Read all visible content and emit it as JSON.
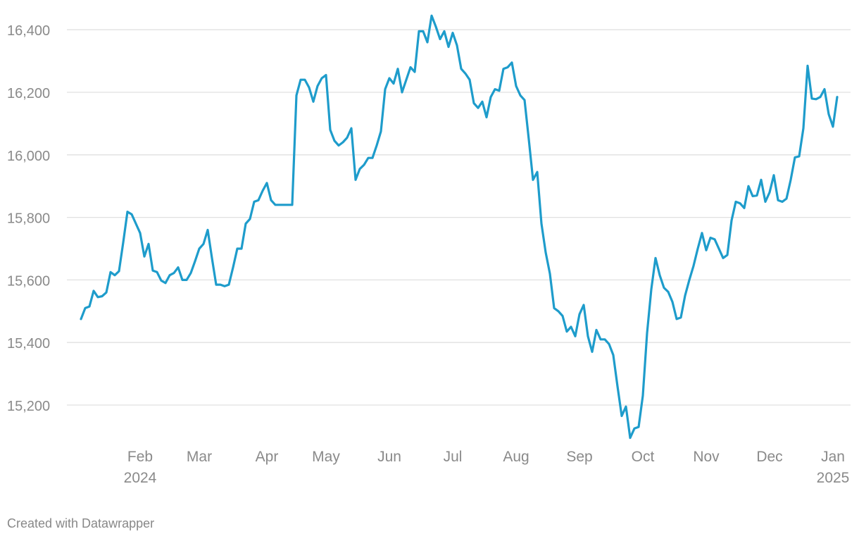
{
  "chart_data": {
    "type": "line",
    "color": "#1e9ccb",
    "grid": true,
    "footer": "Created with Datawrapper",
    "ylim": [
      15050,
      16450
    ],
    "yticks": [
      {
        "value": 15200,
        "label": "15,200"
      },
      {
        "value": 15400,
        "label": "15,400"
      },
      {
        "value": 15600,
        "label": "15,600"
      },
      {
        "value": 15800,
        "label": "15,800"
      },
      {
        "value": 16000,
        "label": "16,000"
      },
      {
        "value": 16200,
        "label": "16,200"
      },
      {
        "value": 16400,
        "label": "16,400"
      }
    ],
    "categories": [
      null,
      null,
      null,
      null,
      null,
      null,
      null,
      null,
      null,
      null,
      null,
      null,
      null,
      null,
      "Feb\n2024",
      null,
      null,
      null,
      null,
      null,
      null,
      null,
      null,
      null,
      null,
      null,
      null,
      null,
      "Mar",
      null,
      null,
      null,
      null,
      null,
      null,
      null,
      null,
      null,
      null,
      null,
      null,
      null,
      null,
      null,
      "Apr",
      null,
      null,
      null,
      null,
      null,
      null,
      null,
      null,
      null,
      null,
      null,
      null,
      null,
      "May",
      null,
      null,
      null,
      null,
      null,
      null,
      null,
      null,
      null,
      null,
      null,
      null,
      null,
      null,
      "Jun",
      null,
      null,
      null,
      null,
      null,
      null,
      null,
      null,
      null,
      null,
      null,
      null,
      null,
      null,
      "Jul",
      null,
      null,
      null,
      null,
      null,
      null,
      null,
      null,
      null,
      null,
      null,
      null,
      null,
      null,
      "Aug",
      null,
      null,
      null,
      null,
      null,
      null,
      null,
      null,
      null,
      null,
      null,
      null,
      null,
      null,
      "Sep",
      null,
      null,
      null,
      null,
      null,
      null,
      null,
      null,
      null,
      null,
      null,
      null,
      null,
      null,
      "Oct",
      null,
      null,
      null,
      null,
      null,
      null,
      null,
      null,
      null,
      null,
      null,
      null,
      null,
      null,
      "Nov",
      null,
      null,
      null,
      null,
      null,
      null,
      null,
      null,
      null,
      null,
      null,
      null,
      null,
      null,
      "Dec",
      null,
      null,
      null,
      null,
      null,
      null,
      null,
      null,
      null,
      null,
      null,
      null,
      null,
      null,
      "Jan\n2025",
      null
    ],
    "values": [
      15475,
      15510,
      15515,
      15565,
      15545,
      15548,
      15560,
      15625,
      15615,
      15628,
      15720,
      15818,
      15810,
      15780,
      15750,
      15675,
      15715,
      15630,
      15625,
      15598,
      15590,
      15615,
      15622,
      15640,
      15600,
      15600,
      15622,
      15660,
      15700,
      15715,
      15760,
      15670,
      15585,
      15585,
      15580,
      15585,
      15640,
      15700,
      15700,
      15780,
      15795,
      15850,
      15855,
      15885,
      15910,
      15855,
      15840,
      15840,
      15840,
      15840,
      15840,
      16190,
      16240,
      16240,
      16215,
      16170,
      16220,
      16245,
      16255,
      16080,
      16045,
      16030,
      16040,
      16055,
      16085,
      15920,
      15955,
      15968,
      15990,
      15990,
      16030,
      16075,
      16210,
      16245,
      16228,
      16275,
      16200,
      16240,
      16280,
      16265,
      16395,
      16395,
      16360,
      16445,
      16410,
      16370,
      16395,
      16345,
      16390,
      16350,
      16275,
      16260,
      16240,
      16165,
      16150,
      16170,
      16120,
      16185,
      16210,
      16205,
      16275,
      16280,
      16295,
      16220,
      16190,
      16175,
      16050,
      15920,
      15945,
      15780,
      15688,
      15620,
      15510,
      15500,
      15485,
      15435,
      15450,
      15420,
      15490,
      15520,
      15420,
      15370,
      15440,
      15410,
      15410,
      15395,
      15360,
      15260,
      15165,
      15195,
      15095,
      15125,
      15130,
      15230,
      15430,
      15570,
      15670,
      15615,
      15575,
      15562,
      15530,
      15475,
      15480,
      15550,
      15600,
      15645,
      15700,
      15750,
      15695,
      15735,
      15730,
      15700,
      15670,
      15680,
      15790,
      15850,
      15845,
      15830,
      15900,
      15868,
      15870,
      15920,
      15850,
      15880,
      15935,
      15855,
      15850,
      15860,
      15920,
      15992,
      15995,
      16085,
      16285,
      16180,
      16178,
      16185,
      16210,
      16130,
      16090,
      16185
    ]
  }
}
